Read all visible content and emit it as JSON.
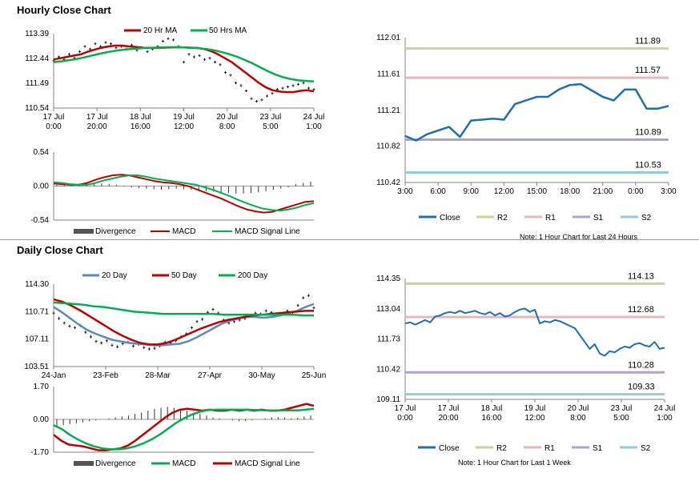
{
  "sections": {
    "hourly_title": "Hourly Close Chart",
    "daily_title": "Daily Close Chart"
  },
  "colors": {
    "red": "#c00000",
    "green": "#00b050",
    "blue": "#5b8ac6",
    "close": "#1f6fb4",
    "r2": "#c3d69b",
    "r1": "#e6b9b8",
    "s1": "#b3a2c7",
    "s2": "#93cddd",
    "bars": "#333333"
  },
  "chart_data": [
    {
      "id": "hourly_price",
      "type": "line",
      "legend": [
        "20 Hr MA",
        "50 Hrs MA"
      ],
      "yticks": [
        "113.39",
        "112.44",
        "111.49",
        "110.54"
      ],
      "ylim": [
        110.54,
        113.39
      ],
      "xticks": [
        [
          "17 Jul",
          "0:00"
        ],
        [
          "17 Jul",
          "20:00"
        ],
        [
          "18 Jul",
          "16:00"
        ],
        [
          "19 Jul",
          "12:00"
        ],
        [
          "20 Jul",
          "8:00"
        ],
        [
          "23 Jul",
          "5:00"
        ],
        [
          "24 Jul",
          "1:00"
        ]
      ],
      "series": [
        {
          "name": "Price",
          "kind": "ohlc",
          "values": [
            112.35,
            112.5,
            112.4,
            112.6,
            112.45,
            112.7,
            112.9,
            112.8,
            113.0,
            112.9,
            113.05,
            113.0,
            112.85,
            112.9,
            112.8,
            112.95,
            112.75,
            112.85,
            112.7,
            112.8,
            112.9,
            113.1,
            113.2,
            113.15,
            112.9,
            112.3,
            112.6,
            112.5,
            112.55,
            112.4,
            112.45,
            112.3,
            112.2,
            111.9,
            111.8,
            111.5,
            111.4,
            111.2,
            110.9,
            110.8,
            110.85,
            111.0,
            111.1,
            111.25,
            111.3,
            111.35,
            111.4,
            111.45,
            111.5,
            111.3,
            111.25
          ]
        },
        {
          "name": "20 Hr MA",
          "values": [
            112.4,
            112.45,
            112.5,
            112.55,
            112.6,
            112.7,
            112.78,
            112.85,
            112.9,
            112.93,
            112.93,
            112.9,
            112.88,
            112.85,
            112.84,
            112.84,
            112.85,
            112.86,
            112.87,
            112.86,
            112.85,
            112.84,
            112.8,
            112.72,
            112.6,
            112.45,
            112.3,
            112.1,
            111.9,
            111.7,
            111.5,
            111.33,
            111.22,
            111.17,
            111.15,
            111.15,
            111.2,
            111.22,
            111.18
          ]
        },
        {
          "name": "50 Hrs MA",
          "values": [
            112.3,
            112.33,
            112.37,
            112.42,
            112.48,
            112.55,
            112.62,
            112.68,
            112.73,
            112.77,
            112.8,
            112.82,
            112.84,
            112.85,
            112.86,
            112.87,
            112.87,
            112.86,
            112.85,
            112.83,
            112.8,
            112.75,
            112.68,
            112.6,
            112.5,
            112.38,
            112.25,
            112.1,
            111.95,
            111.82,
            111.72,
            111.65,
            111.6,
            111.58,
            111.56
          ]
        }
      ]
    },
    {
      "id": "hourly_macd",
      "type": "line",
      "yticks": [
        "0.54",
        "0.00",
        "-0.54"
      ],
      "ylim": [
        -0.54,
        0.54
      ],
      "legend": [
        "Divergence",
        "MACD",
        "MACD Signal Line"
      ],
      "series": [
        {
          "name": "Divergence",
          "kind": "bars",
          "values": [
            0.02,
            0.03,
            0.02,
            0.04,
            0.05,
            0.06,
            0.04,
            0.03,
            0.02,
            -0.01,
            -0.02,
            -0.03,
            -0.04,
            -0.05,
            -0.06,
            -0.05,
            -0.04,
            -0.05,
            -0.06,
            -0.07,
            -0.08,
            -0.09,
            -0.1,
            -0.11,
            -0.12,
            -0.12,
            -0.11,
            -0.1,
            -0.08,
            -0.06,
            -0.04,
            -0.02,
            0.03,
            0.05,
            0.07
          ]
        },
        {
          "name": "MACD",
          "values": [
            0.04,
            0.03,
            0.02,
            0.02,
            0.05,
            0.1,
            0.14,
            0.17,
            0.18,
            0.17,
            0.14,
            0.11,
            0.08,
            0.06,
            0.05,
            0.03,
            0.0,
            -0.05,
            -0.1,
            -0.15,
            -0.2,
            -0.26,
            -0.32,
            -0.37,
            -0.4,
            -0.42,
            -0.41,
            -0.37,
            -0.33,
            -0.29,
            -0.25,
            -0.24
          ]
        },
        {
          "name": "MACD Signal Line",
          "values": [
            0.06,
            0.05,
            0.03,
            0.02,
            0.02,
            0.05,
            0.09,
            0.12,
            0.15,
            0.17,
            0.17,
            0.15,
            0.12,
            0.1,
            0.08,
            0.06,
            0.04,
            0.02,
            -0.02,
            -0.06,
            -0.11,
            -0.16,
            -0.22,
            -0.27,
            -0.32,
            -0.36,
            -0.38,
            -0.39,
            -0.37,
            -0.34,
            -0.3,
            -0.27
          ]
        }
      ]
    },
    {
      "id": "hourly_levels",
      "type": "line",
      "yticks": [
        "112.01",
        "111.61",
        "111.21",
        "110.82",
        "110.42"
      ],
      "ylim": [
        110.42,
        112.01
      ],
      "xticks": [
        "3:00",
        "6:00",
        "9:00",
        "12:00",
        "15:00",
        "18:00",
        "21:00",
        "0:00",
        "3:00"
      ],
      "levels": [
        {
          "name": "R2",
          "value": 111.89,
          "label": "111.89"
        },
        {
          "name": "R1",
          "value": 111.57,
          "label": "111.57"
        },
        {
          "name": "S1",
          "value": 110.89,
          "label": "110.89"
        },
        {
          "name": "S2",
          "value": 110.53,
          "label": "110.53"
        }
      ],
      "series": [
        {
          "name": "Close",
          "values": [
            110.93,
            110.88,
            110.95,
            110.99,
            111.03,
            110.92,
            111.1,
            111.11,
            111.12,
            111.11,
            111.28,
            111.32,
            111.36,
            111.36,
            111.44,
            111.49,
            111.5,
            111.43,
            111.36,
            111.32,
            111.44,
            111.44,
            111.23,
            111.23,
            111.26
          ]
        }
      ],
      "legend": [
        "Close",
        "R2",
        "R1",
        "S1",
        "S2"
      ],
      "note": "Note: 1 Hour Chart for Last 24 Hours"
    },
    {
      "id": "daily_price",
      "type": "line",
      "legend": [
        "20 Day",
        "50 Day",
        "200 Day"
      ],
      "yticks": [
        "114.30",
        "110.71",
        "107.11",
        "103.51"
      ],
      "ylim": [
        103.51,
        114.3
      ],
      "xticks": [
        "24-Jan",
        "23-Feb",
        "28-Mar",
        "27-Apr",
        "30-May",
        "25-Jun"
      ],
      "series": [
        {
          "name": "Price",
          "kind": "ohlc",
          "values": [
            110.5,
            109.8,
            109.2,
            108.8,
            108.6,
            108.9,
            108.0,
            107.4,
            106.8,
            106.6,
            106.9,
            106.3,
            106.1,
            106.5,
            106.7,
            106.2,
            106.4,
            106.0,
            105.8,
            105.9,
            106.2,
            106.7,
            106.6,
            106.9,
            107.4,
            107.8,
            108.6,
            109.4,
            109.7,
            110.6,
            111.0,
            110.5,
            109.6,
            109.2,
            109.4,
            109.6,
            109.8,
            110.1,
            110.5,
            110.4,
            110.8,
            110.6,
            110.2,
            110.4,
            110.8,
            110.6,
            111.5,
            112.5,
            112.8,
            111.2
          ]
        },
        {
          "name": "20 Day",
          "values": [
            111.3,
            110.6,
            109.8,
            109.0,
            108.3,
            107.8,
            107.4,
            107.0,
            106.8,
            106.6,
            106.5,
            106.4,
            106.3,
            106.3,
            106.4,
            106.5,
            106.8,
            107.3,
            107.9,
            108.5,
            109.1,
            109.5,
            109.8,
            110.0,
            110.0,
            109.9,
            110.0,
            110.2,
            110.5,
            110.8,
            111.3,
            111.7
          ]
        },
        {
          "name": "50 Day",
          "values": [
            112.3,
            112.0,
            111.5,
            110.9,
            110.2,
            109.5,
            108.8,
            108.1,
            107.5,
            107.0,
            106.6,
            106.4,
            106.4,
            106.6,
            107.0,
            107.5,
            108.0,
            108.5,
            108.9,
            109.3,
            109.6,
            109.8,
            110.0,
            110.2,
            110.3,
            110.4,
            110.5,
            110.6,
            110.7,
            110.8,
            110.8
          ]
        },
        {
          "name": "200 Day",
          "values": [
            111.9,
            111.8,
            111.7,
            111.6,
            111.4,
            111.3,
            111.1,
            110.9,
            110.7,
            110.6,
            110.5,
            110.4,
            110.4,
            110.4,
            110.4,
            110.4,
            110.4,
            110.3,
            110.3,
            110.3,
            110.3,
            110.3,
            110.3,
            110.3,
            110.3,
            110.2,
            110.2
          ]
        }
      ]
    },
    {
      "id": "daily_macd",
      "type": "line",
      "yticks": [
        "1.70",
        "0.00",
        "-1.70"
      ],
      "ylim": [
        -1.7,
        1.7
      ],
      "legend": [
        "Divergence",
        "MACD",
        "MACD Signal Line"
      ],
      "series": [
        {
          "name": "Divergence",
          "kind": "bars",
          "values": [
            -0.35,
            -0.3,
            -0.25,
            -0.2,
            -0.15,
            -0.1,
            -0.05,
            0.0,
            0.05,
            0.1,
            0.15,
            0.2,
            0.28,
            0.35,
            0.45,
            0.55,
            0.6,
            0.65,
            0.6,
            0.55,
            0.45,
            0.35,
            0.3,
            0.2,
            0.1,
            0.05,
            0.0,
            -0.05,
            -0.1,
            -0.08,
            -0.05,
            0.0,
            0.05,
            0.1,
            0.12,
            0.1,
            0.05,
            0.08,
            0.15,
            0.2
          ]
        },
        {
          "name": "MACD",
          "values": [
            -0.8,
            -1.1,
            -1.3,
            -1.35,
            -1.4,
            -1.5,
            -1.6,
            -1.6,
            -1.55,
            -1.5,
            -1.35,
            -1.1,
            -0.8,
            -0.5,
            -0.2,
            0.1,
            0.35,
            0.5,
            0.55,
            0.5,
            0.45,
            0.5,
            0.45,
            0.45,
            0.5,
            0.45,
            0.5,
            0.45,
            0.5,
            0.45,
            0.45,
            0.5,
            0.6,
            0.7,
            0.8,
            0.7
          ]
        },
        {
          "name": "MACD Signal Line",
          "values": [
            -0.3,
            -0.5,
            -0.8,
            -1.05,
            -1.25,
            -1.4,
            -1.5,
            -1.55,
            -1.55,
            -1.5,
            -1.4,
            -1.25,
            -1.05,
            -0.8,
            -0.5,
            -0.2,
            0.05,
            0.25,
            0.4,
            0.48,
            0.5,
            0.5,
            0.5,
            0.5,
            0.5,
            0.48,
            0.47,
            0.47,
            0.47,
            0.47,
            0.47,
            0.5,
            0.55
          ]
        }
      ]
    },
    {
      "id": "daily_levels",
      "type": "line",
      "yticks": [
        "114.35",
        "113.04",
        "111.73",
        "110.42",
        "109.11"
      ],
      "ylim": [
        109.11,
        114.35
      ],
      "xticks": [
        [
          "17 Jul",
          "0:00"
        ],
        [
          "17 Jul",
          "20:00"
        ],
        [
          "18 Jul",
          "16:00"
        ],
        [
          "19 Jul",
          "12:00"
        ],
        [
          "20 Jul",
          "8:00"
        ],
        [
          "23 Jul",
          "5:00"
        ],
        [
          "24 Jul",
          "1:00"
        ]
      ],
      "levels": [
        {
          "name": "R2",
          "value": 114.13,
          "label": "114.13"
        },
        {
          "name": "R1",
          "value": 112.68,
          "label": "112.68"
        },
        {
          "name": "S1",
          "value": 110.28,
          "label": "110.28"
        },
        {
          "name": "S2",
          "value": 109.33,
          "label": "109.33"
        }
      ],
      "series": [
        {
          "name": "Close",
          "values": [
            112.4,
            112.45,
            112.35,
            112.45,
            112.55,
            112.45,
            112.7,
            112.75,
            112.85,
            112.9,
            112.85,
            112.95,
            112.85,
            112.9,
            112.95,
            112.85,
            112.8,
            112.9,
            112.75,
            112.85,
            112.7,
            112.75,
            112.9,
            113.0,
            113.05,
            112.9,
            113.0,
            112.4,
            112.5,
            112.45,
            112.55,
            112.5,
            112.4,
            112.3,
            112.2,
            111.9,
            111.6,
            111.3,
            111.5,
            111.1,
            111.0,
            111.2,
            111.15,
            111.3,
            111.4,
            111.35,
            111.5,
            111.55,
            111.45,
            111.4,
            111.6,
            111.3,
            111.35
          ]
        }
      ],
      "legend": [
        "Close",
        "R2",
        "R1",
        "S1",
        "S2"
      ],
      "note": "Note: 1 Hour Chart for Last 1 Week"
    }
  ]
}
